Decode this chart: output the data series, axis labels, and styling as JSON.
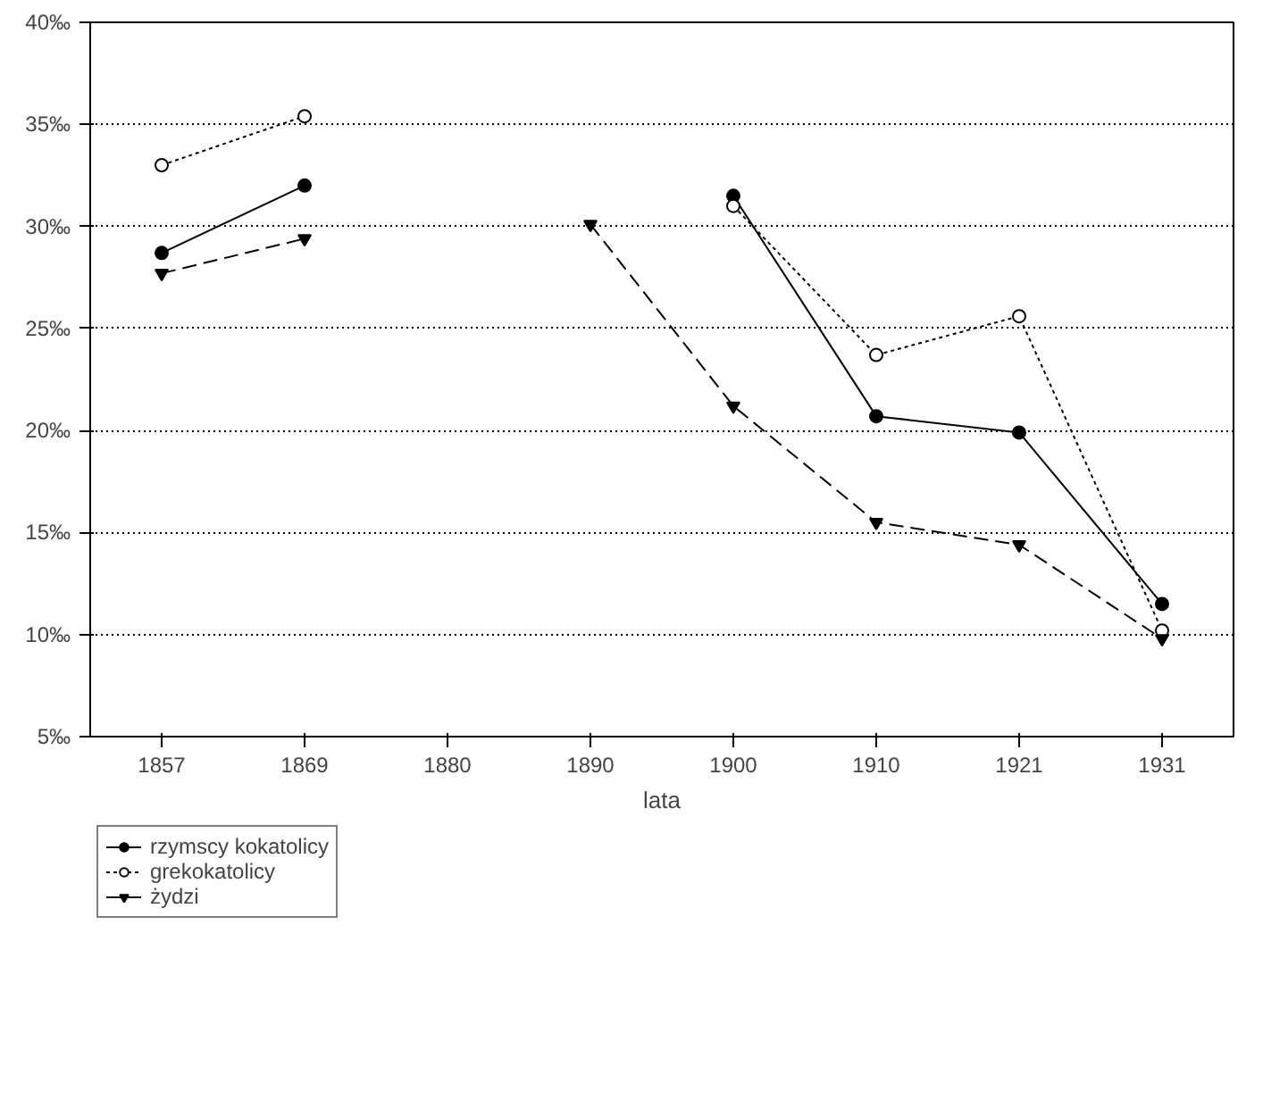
{
  "chart_data": {
    "type": "line",
    "xlabel": "lata",
    "categories": [
      "1857",
      "1869",
      "1880",
      "1890",
      "1900",
      "1910",
      "1921",
      "1931"
    ],
    "series": [
      {
        "name": "rzymscy kokatolicy",
        "color": "#000000",
        "marker": "circle",
        "line_style": "solid",
        "values": [
          28.7,
          32.0,
          null,
          null,
          31.5,
          20.7,
          19.9,
          11.5
        ]
      },
      {
        "name": "grekokatolicy",
        "color": "#000000",
        "marker": "circle",
        "line_style": "dotted",
        "values": [
          33.0,
          35.4,
          null,
          null,
          31.0,
          23.7,
          25.6,
          10.2
        ]
      },
      {
        "name": "żydzi",
        "color": "#000000",
        "marker": "triangle",
        "line_style": "dashed",
        "values": [
          27.7,
          29.4,
          null,
          30.1,
          21.2,
          15.5,
          14.4,
          9.8
        ]
      }
    ],
    "ylim": [
      5,
      40
    ],
    "yticks": [
      {
        "value": 5,
        "label": "5‰"
      },
      {
        "value": 10,
        "label": "10‰"
      },
      {
        "value": 15,
        "label": "15‰"
      },
      {
        "value": 20,
        "label": "20‰"
      },
      {
        "value": 25,
        "label": "25‰"
      },
      {
        "value": 30,
        "label": "30‰"
      },
      {
        "value": 35,
        "label": "35‰"
      },
      {
        "value": 40,
        "label": "40‰"
      }
    ],
    "grid": "y",
    "legend": "bottom left"
  }
}
